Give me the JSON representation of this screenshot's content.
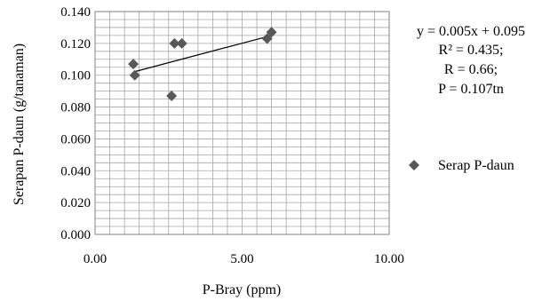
{
  "chart_data": {
    "type": "scatter",
    "xlabel": "P-Bray (ppm)",
    "ylabel": "Serapan P-daun (g/tanaman)",
    "xlim": [
      0,
      10
    ],
    "ylim": [
      0,
      0.14
    ],
    "x_ticks": [
      "0.00",
      "5.00",
      "10.00"
    ],
    "y_ticks": [
      "0.000",
      "0.020",
      "0.040",
      "0.060",
      "0.080",
      "0.100",
      "0.120",
      "0.140"
    ],
    "grid": true,
    "series": [
      {
        "name": "Serap P-daun",
        "color": "#595959",
        "marker": "diamond",
        "points": [
          {
            "x": 1.3,
            "y": 0.107
          },
          {
            "x": 1.35,
            "y": 0.1
          },
          {
            "x": 2.6,
            "y": 0.087
          },
          {
            "x": 2.7,
            "y": 0.12
          },
          {
            "x": 2.95,
            "y": 0.12
          },
          {
            "x": 5.85,
            "y": 0.123
          },
          {
            "x": 6.0,
            "y": 0.127
          }
        ]
      }
    ],
    "trendline": {
      "x_range": [
        1.3,
        6.0
      ],
      "y_range": [
        0.102,
        0.125
      ],
      "color": "#000000"
    },
    "annotations": [
      "y = 0.005x + 0.095",
      "R² = 0.435;",
      "R = 0.66;",
      "P = 0.107tn"
    ],
    "legend_position": "right"
  }
}
